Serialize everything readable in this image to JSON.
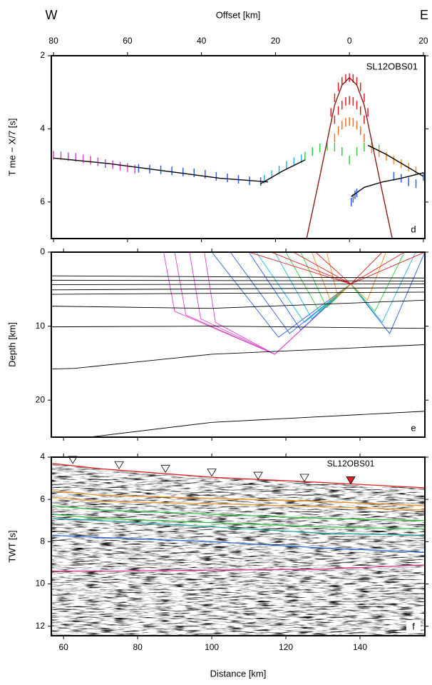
{
  "chart_data": [
    {
      "type": "scatter",
      "x_end_labels": [
        "W",
        "E"
      ],
      "xlabel": "Offset [km]",
      "ylabel": "T me − X/7 [s]",
      "label": "SL12OBS01",
      "panel_label": "d",
      "xlim": [
        -80.6,
        20.4
      ],
      "xticks": [
        {
          "value": -80,
          "label": "80"
        },
        {
          "value": -60,
          "label": "60"
        },
        {
          "value": -40,
          "label": "40"
        },
        {
          "value": -20,
          "label": "20"
        },
        0,
        20
      ],
      "ylim": [
        2,
        7
      ],
      "yticks": [
        2,
        4,
        6
      ],
      "series": [
        {
          "color": "#e040c8",
          "x": [
            -80,
            -78,
            -76,
            -74,
            -72,
            -70,
            -68,
            -66,
            -64,
            -62,
            -60,
            -58
          ],
          "values": [
            4.72,
            4.74,
            4.76,
            4.78,
            4.82,
            4.86,
            4.9,
            4.95,
            4.98,
            5.02,
            5.06,
            5.1
          ]
        },
        {
          "color": "#2f5fe0",
          "x": [
            -57,
            -54,
            -51,
            -48,
            -45,
            -42,
            -39,
            -36,
            -33,
            -30,
            -27,
            -24
          ],
          "values": [
            5.08,
            5.1,
            5.12,
            5.15,
            5.18,
            5.2,
            5.24,
            5.3,
            5.34,
            5.38,
            5.42,
            5.44
          ]
        },
        {
          "color": "#20b8e8",
          "x": [
            -23,
            -21,
            -19,
            -17,
            -15,
            -13
          ],
          "values": [
            5.38,
            5.25,
            5.12,
            5.0,
            4.9,
            4.82
          ]
        },
        {
          "color": "#30d040",
          "x": [
            -12,
            -10,
            -8,
            -6,
            -4,
            -2,
            0,
            2,
            4,
            6,
            8
          ],
          "values": [
            4.75,
            4.62,
            4.52,
            4.48,
            4.5,
            4.62,
            4.85,
            4.62,
            4.5,
            4.48,
            4.55
          ]
        },
        {
          "color": "#f09020",
          "x": [
            6,
            8,
            10,
            12,
            14,
            16,
            18
          ],
          "values": [
            4.55,
            4.65,
            4.75,
            4.85,
            4.95,
            5.05,
            5.15
          ]
        },
        {
          "color": "#2f5fe0",
          "x": [
            12,
            14,
            16,
            18,
            20
          ],
          "values": [
            5.3,
            5.35,
            5.45,
            5.5,
            5.3
          ]
        },
        {
          "color": "#2f5fe0",
          "x": [
            0.5,
            1,
            1.5,
            2
          ],
          "values": [
            6.0,
            5.9,
            5.8,
            5.75
          ]
        },
        {
          "color": "#e02020",
          "x": [
            -5,
            -4,
            -3,
            -2,
            -1,
            0,
            1,
            2,
            3,
            4,
            5
          ],
          "values": [
            3.55,
            3.15,
            2.85,
            2.7,
            2.62,
            2.6,
            2.62,
            2.7,
            2.85,
            3.15,
            3.55
          ]
        },
        {
          "color": "#e02020",
          "x": [
            -4,
            -3,
            -2,
            -1,
            0,
            1,
            2,
            3,
            4
          ],
          "values": [
            3.75,
            3.5,
            3.35,
            3.25,
            3.22,
            3.25,
            3.35,
            3.5,
            3.75
          ]
        },
        {
          "color": "#f07020",
          "x": [
            -4,
            -3,
            -2,
            -1,
            0,
            1,
            2,
            3,
            4
          ],
          "values": [
            4.25,
            4.05,
            3.9,
            3.82,
            3.8,
            3.82,
            3.9,
            4.05,
            4.25
          ]
        }
      ],
      "curves": [
        {
          "color": "#000000",
          "x": [
            -80,
            -65,
            -50,
            -35,
            -22
          ],
          "values": [
            4.8,
            4.95,
            5.15,
            5.35,
            5.45
          ]
        },
        {
          "color": "#000000",
          "x": [
            -24,
            -18,
            -12
          ],
          "values": [
            5.5,
            5.15,
            4.85
          ]
        },
        {
          "color": "#8b1a1a",
          "x": [
            -12,
            -8,
            -4,
            -2,
            0,
            2,
            4,
            8,
            12
          ],
          "values": [
            7.2,
            5.3,
            3.35,
            2.8,
            2.6,
            2.8,
            3.35,
            5.3,
            7.2
          ]
        },
        {
          "color": "#000000",
          "x": [
            0.5,
            4,
            9,
            14,
            20
          ],
          "values": [
            5.85,
            5.6,
            5.45,
            5.35,
            5.2
          ]
        },
        {
          "color": "#000000",
          "x": [
            5,
            10,
            15,
            20
          ],
          "values": [
            4.45,
            4.7,
            5.0,
            5.3
          ]
        }
      ]
    },
    {
      "type": "line",
      "ylabel": "Depth [km]",
      "panel_label": "e",
      "xlim": [
        56.7,
        157.5
      ],
      "ylim": [
        0,
        25
      ],
      "yticks": [
        0,
        10,
        20
      ],
      "series": [
        {
          "color": "#000000",
          "x": [
            56.7,
            157.5
          ],
          "values": [
            3.2,
            3.5
          ]
        },
        {
          "color": "#000000",
          "x": [
            56.7,
            157.5
          ],
          "values": [
            3.8,
            3.9
          ]
        },
        {
          "color": "#000000",
          "x": [
            56.7,
            157.5
          ],
          "values": [
            4.4,
            4.3
          ]
        },
        {
          "color": "#000000",
          "x": [
            56.7,
            157.5
          ],
          "values": [
            5.1,
            4.8
          ]
        },
        {
          "color": "#000000",
          "x": [
            56.7,
            157.5
          ],
          "values": [
            5.7,
            5.4
          ]
        },
        {
          "color": "#000000",
          "x": [
            56.7,
            100,
            157.5
          ],
          "values": [
            7.3,
            7.6,
            6.5
          ]
        },
        {
          "color": "#000000",
          "x": [
            56.7,
            100,
            157.5
          ],
          "values": [
            10.1,
            10.0,
            10.3
          ]
        },
        {
          "color": "#000000",
          "x": [
            56.7,
            63,
            100,
            140,
            157.5
          ],
          "values": [
            15.8,
            15.7,
            13.8,
            12.9,
            12.5
          ]
        },
        {
          "color": "#000000",
          "x": [
            67,
            100,
            157.5
          ],
          "values": [
            25,
            23,
            21.5
          ]
        }
      ],
      "rays": [
        {
          "color": "#e040c8",
          "x": [
            87,
            90,
            117,
            137.5
          ],
          "values": [
            0,
            8,
            13.8,
            4.3
          ]
        },
        {
          "color": "#e040c8",
          "x": [
            90,
            93,
            117,
            137.5
          ],
          "values": [
            0,
            8.5,
            13.8,
            4.3
          ]
        },
        {
          "color": "#e040c8",
          "x": [
            94,
            97,
            117,
            137.5
          ],
          "values": [
            0,
            9,
            13.8,
            4.3
          ]
        },
        {
          "color": "#e040c8",
          "x": [
            98,
            101,
            117,
            137.5
          ],
          "values": [
            0,
            9.5,
            13.8,
            4.3
          ]
        },
        {
          "color": "#2f5fe0",
          "x": [
            100,
            118,
            137.5
          ],
          "values": [
            0,
            11.5,
            4.3
          ]
        },
        {
          "color": "#2f5fe0",
          "x": [
            105,
            121,
            137.5
          ],
          "values": [
            0,
            11,
            4.3
          ]
        },
        {
          "color": "#2f5fe0",
          "x": [
            110,
            124,
            137.5
          ],
          "values": [
            0,
            10.5,
            4.3
          ]
        },
        {
          "color": "#2f5fe0",
          "x": [
            157.5,
            148,
            137.5
          ],
          "values": [
            0,
            11,
            4.3
          ]
        },
        {
          "color": "#20b8e8",
          "x": [
            112,
            125,
            137.5
          ],
          "values": [
            0,
            9.5,
            4.3
          ]
        },
        {
          "color": "#20b8e8",
          "x": [
            117,
            127,
            137.5
          ],
          "values": [
            0,
            9,
            4.3
          ]
        },
        {
          "color": "#20b8e8",
          "x": [
            155,
            146,
            137.5
          ],
          "values": [
            0,
            9.5,
            4.3
          ]
        },
        {
          "color": "#30d040",
          "x": [
            120,
            129,
            137.5
          ],
          "values": [
            0,
            8,
            4.3
          ]
        },
        {
          "color": "#30d040",
          "x": [
            124,
            131,
            137.5
          ],
          "values": [
            0,
            7.5,
            4.3
          ]
        },
        {
          "color": "#30d040",
          "x": [
            152,
            144,
            137.5
          ],
          "values": [
            0,
            8,
            4.3
          ]
        },
        {
          "color": "#f09020",
          "x": [
            127,
            132,
            137.5
          ],
          "values": [
            0,
            6.5,
            4.3
          ]
        },
        {
          "color": "#f09020",
          "x": [
            131,
            134,
            137.5
          ],
          "values": [
            0,
            6,
            4.3
          ]
        },
        {
          "color": "#f09020",
          "x": [
            147,
            142,
            137.5
          ],
          "values": [
            0,
            6.5,
            4.3
          ]
        },
        {
          "color": "#e02020",
          "x": [
            137.5,
            110
          ],
          "values": [
            4.3,
            0
          ]
        },
        {
          "color": "#e02020",
          "x": [
            137.5,
            116
          ],
          "values": [
            4.3,
            0
          ]
        },
        {
          "color": "#e02020",
          "x": [
            137.5,
            122
          ],
          "values": [
            4.3,
            0
          ]
        },
        {
          "color": "#e02020",
          "x": [
            137.5,
            128
          ],
          "values": [
            4.3,
            0
          ]
        },
        {
          "color": "#e02020",
          "x": [
            137.5,
            146
          ],
          "values": [
            4.3,
            0
          ]
        },
        {
          "color": "#e02020",
          "x": [
            137.5,
            152
          ],
          "values": [
            4.3,
            0
          ]
        },
        {
          "color": "#e02020",
          "x": [
            137.5,
            157.5
          ],
          "values": [
            4.3,
            0
          ]
        }
      ]
    },
    {
      "type": "line",
      "xlabel": "Distance [km]",
      "ylabel": "TWT [s]",
      "label": "SL12OBS01",
      "panel_label": "f",
      "xlim": [
        56.7,
        157.5
      ],
      "xticks": [
        60,
        80,
        100,
        120,
        140
      ],
      "ylim": [
        4,
        12.45
      ],
      "yticks": [
        4,
        6,
        8,
        10,
        12
      ],
      "series": [
        {
          "color": "#e02020",
          "x": [
            57,
            70,
            100,
            130,
            157.5
          ],
          "values": [
            4.3,
            4.55,
            4.95,
            5.2,
            5.45
          ]
        },
        {
          "color": "#f09020",
          "x": [
            57,
            70,
            100,
            130,
            157.5
          ],
          "values": [
            5.6,
            5.8,
            5.95,
            6.1,
            6.3
          ]
        },
        {
          "color": "#f0a030",
          "x": [
            57,
            70,
            100,
            130,
            157.5
          ],
          "values": [
            5.9,
            6.1,
            6.2,
            6.35,
            6.5
          ]
        },
        {
          "color": "#30c040",
          "x": [
            57,
            70,
            100,
            130,
            157.5
          ],
          "values": [
            6.3,
            6.5,
            6.7,
            6.9,
            7.0
          ]
        },
        {
          "color": "#30c040",
          "x": [
            57,
            70,
            100,
            130,
            157.5
          ],
          "values": [
            6.7,
            6.9,
            7.1,
            7.3,
            7.4
          ]
        },
        {
          "color": "#20a8a0",
          "x": [
            57,
            70,
            100,
            130,
            157.5
          ],
          "values": [
            6.9,
            7.0,
            7.3,
            7.6,
            7.7
          ]
        },
        {
          "color": "#3070e0",
          "x": [
            57,
            70,
            100,
            130,
            157.5
          ],
          "values": [
            7.7,
            7.8,
            8.0,
            8.3,
            8.5
          ]
        },
        {
          "color": "#e03090",
          "x": [
            57,
            70,
            100,
            130,
            157.5
          ],
          "values": [
            9.4,
            9.4,
            9.35,
            9.3,
            9.1
          ]
        }
      ],
      "markers": {
        "x": [
          62.5,
          75,
          87.5,
          100,
          112.5,
          125,
          137.5
        ],
        "values": [
          4.3,
          4.55,
          4.72,
          4.9,
          5.05,
          5.15,
          5.27
        ],
        "colors": [
          "#ffffff",
          "#ffffff",
          "#ffffff",
          "#ffffff",
          "#ffffff",
          "#ffffff",
          "#e02020"
        ]
      }
    }
  ]
}
